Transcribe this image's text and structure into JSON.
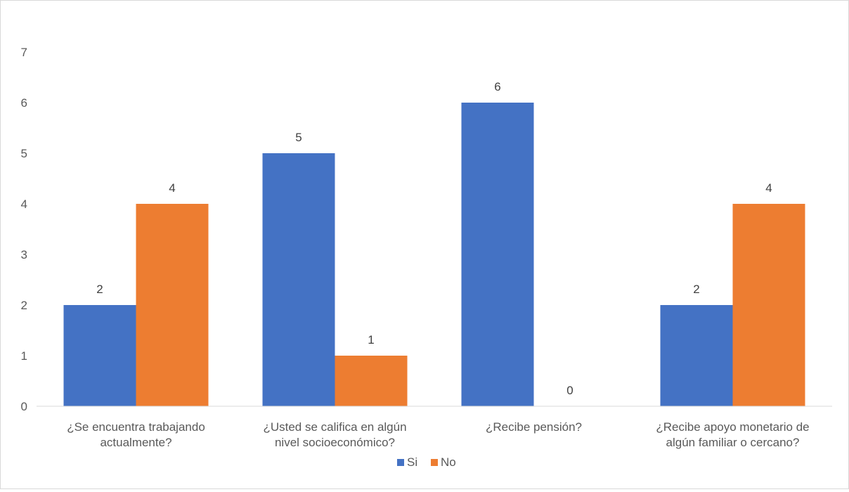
{
  "chart_data": {
    "type": "bar",
    "title": "",
    "xlabel": "",
    "ylabel": "",
    "categories": [
      [
        "¿Se encuentra trabajando",
        "actualmente?"
      ],
      [
        "¿Usted se califica en algún",
        "nivel socioeconómico?"
      ],
      [
        "¿Recibe pensión?"
      ],
      [
        "¿Recibe apoyo monetario de",
        "algún familiar o cercano?"
      ]
    ],
    "series": [
      {
        "name": "Si",
        "color": "#4472C4",
        "values": [
          2,
          5,
          6,
          2
        ]
      },
      {
        "name": "No",
        "color": "#ED7D31",
        "values": [
          4,
          1,
          0,
          4
        ]
      }
    ],
    "ylim": [
      0,
      7
    ],
    "yticks": [
      0,
      1,
      2,
      3,
      4,
      5,
      6,
      7
    ],
    "grid": false,
    "legend_position": "bottom",
    "data_labels": true
  }
}
